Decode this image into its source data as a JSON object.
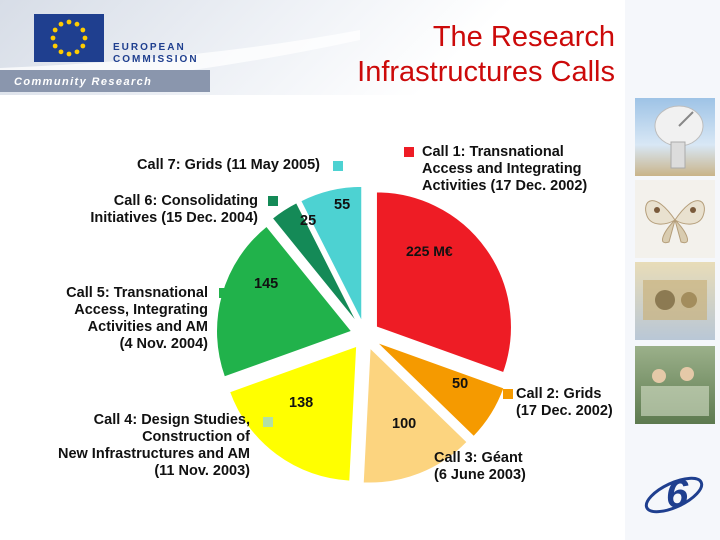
{
  "slide": {
    "title_line1": "The Research",
    "title_line2": "Infrastructures Calls",
    "logo_line1": "EUROPEAN",
    "logo_line2": "COMMISSION",
    "header_subtitle": "Community Research"
  },
  "chart_data": {
    "type": "pie",
    "title": "The Research Infrastructures Calls",
    "total_label": "225 M€",
    "slices": [
      {
        "label": "Call 1: Transnational Access and Integrating Activities (17 Dec. 2002)",
        "label_lines": [
          "Call 1: Transnational",
          "Access and Integrating",
          "Activities (17 Dec. 2002)"
        ],
        "value": 225,
        "value_label": "225 M€",
        "color": "#ee1c25"
      },
      {
        "label": "Call 2: Grids (17 Dec. 2002)",
        "label_lines": [
          "Call 2: Grids",
          "(17 Dec. 2002)"
        ],
        "value": 50,
        "value_label": "50",
        "color": "#f59a00"
      },
      {
        "label": "Call 3: Géant (6 June 2003)",
        "label_lines": [
          "Call 3: Géant",
          "(6 June 2003)"
        ],
        "value": 100,
        "value_label": "100",
        "color": "#fcd47f"
      },
      {
        "label": "Call 4: Design Studies, Construction of New Infrastructures and AM (11 Nov. 2003)",
        "label_lines": [
          "Call 4: Design Studies,",
          "Construction of",
          "New Infrastructures and AM",
          "(11 Nov. 2003)"
        ],
        "value": 138,
        "value_label": "138",
        "color": "#ffff00"
      },
      {
        "label": "Call 5: Transnational Access, Integrating Activities and AM (4 Nov. 2004)",
        "label_lines": [
          "Call 5: Transnational",
          "Access, Integrating",
          "Activities and AM",
          "(4 Nov. 2004)"
        ],
        "value": 145,
        "value_label": "145",
        "color": "#21b24b"
      },
      {
        "label": "Call 6: Consolidating Initiatives (15 Dec. 2004)",
        "label_lines": [
          "Call 6: Consolidating",
          "Initiatives (15 Dec. 2004)"
        ],
        "value": 25,
        "value_label": "25",
        "color": "#148a57"
      },
      {
        "label": "Call 7: Grids (11 May 2005)",
        "label_lines": [
          "Call 7: Grids (11 May 2005)"
        ],
        "value": 55,
        "value_label": "55",
        "color": "#4dd2d2"
      }
    ],
    "legend_swatch_color": "#b3e0a6"
  }
}
